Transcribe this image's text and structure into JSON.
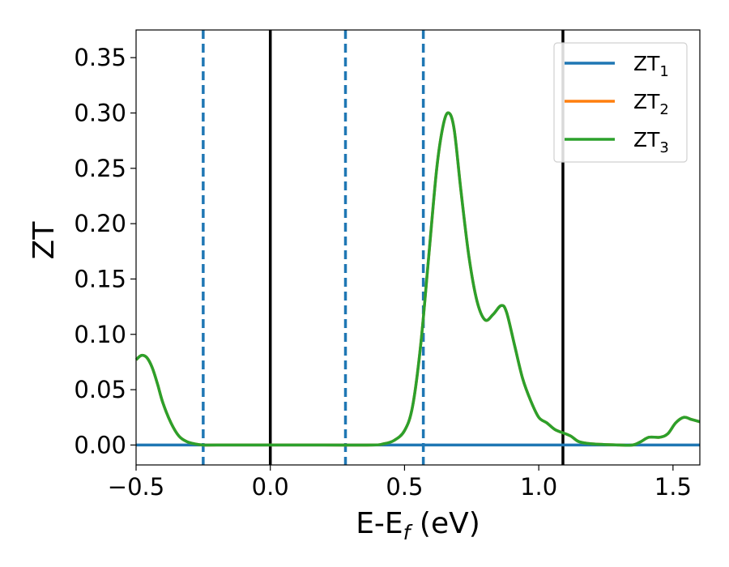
{
  "chart_data": {
    "type": "line",
    "xlabel": "E-E",
    "xlabel_sub": "f",
    "xlabel_unit": " (eV)",
    "ylabel": "ZT",
    "xlim": [
      -0.5,
      1.6
    ],
    "ylim": [
      -0.018,
      0.375
    ],
    "xticks": [
      -0.5,
      0.0,
      0.5,
      1.0,
      1.5
    ],
    "xtick_labels": [
      "−0.5",
      "0.0",
      "0.5",
      "1.0",
      "1.5"
    ],
    "yticks": [
      0.0,
      0.05,
      0.1,
      0.15,
      0.2,
      0.25,
      0.3,
      0.35
    ],
    "ytick_labels": [
      "0.00",
      "0.05",
      "0.10",
      "0.15",
      "0.20",
      "0.25",
      "0.30",
      "0.35"
    ],
    "grid": false,
    "legend_position": "top-right",
    "series": [
      {
        "name": "ZT",
        "name_sub": "1",
        "color": "#1f77b4",
        "x": [
          -0.5,
          1.6
        ],
        "y": [
          0.0,
          0.0
        ]
      },
      {
        "name": "ZT",
        "name_sub": "2",
        "color": "#ff7f0e",
        "x": [
          -0.5,
          -0.48,
          -0.46,
          -0.44,
          -0.42,
          -0.4,
          -0.37,
          -0.34,
          -0.31,
          -0.28,
          -0.25,
          -0.2,
          0.0,
          0.2,
          0.38,
          0.42,
          0.46,
          0.5,
          0.53,
          0.56,
          0.59,
          0.62,
          0.645,
          0.665,
          0.685,
          0.71,
          0.74,
          0.77,
          0.8,
          0.83,
          0.86,
          0.88,
          0.91,
          0.94,
          0.97,
          1.0,
          1.03,
          1.06,
          1.09,
          1.12,
          1.15,
          1.2,
          1.3,
          1.35,
          1.38,
          1.41,
          1.45,
          1.48,
          1.51,
          1.54,
          1.57,
          1.6
        ],
        "y": [
          0.077,
          0.081,
          0.079,
          0.07,
          0.055,
          0.038,
          0.02,
          0.008,
          0.003,
          0.001,
          0.0,
          0.0,
          0.0,
          0.0,
          0.0,
          0.001,
          0.004,
          0.013,
          0.035,
          0.09,
          0.17,
          0.25,
          0.29,
          0.3,
          0.285,
          0.23,
          0.17,
          0.13,
          0.113,
          0.118,
          0.126,
          0.12,
          0.09,
          0.06,
          0.04,
          0.025,
          0.02,
          0.014,
          0.011,
          0.008,
          0.003,
          0.001,
          0.0,
          0.0,
          0.003,
          0.007,
          0.007,
          0.01,
          0.02,
          0.025,
          0.023,
          0.021
        ]
      },
      {
        "name": "ZT",
        "name_sub": "3",
        "color": "#2ca02c",
        "x": [
          -0.5,
          -0.48,
          -0.46,
          -0.44,
          -0.42,
          -0.4,
          -0.37,
          -0.34,
          -0.31,
          -0.28,
          -0.25,
          -0.2,
          0.0,
          0.2,
          0.38,
          0.42,
          0.46,
          0.5,
          0.53,
          0.56,
          0.59,
          0.62,
          0.645,
          0.665,
          0.685,
          0.71,
          0.74,
          0.77,
          0.8,
          0.83,
          0.86,
          0.88,
          0.91,
          0.94,
          0.97,
          1.0,
          1.03,
          1.06,
          1.09,
          1.12,
          1.15,
          1.2,
          1.3,
          1.35,
          1.38,
          1.41,
          1.45,
          1.48,
          1.51,
          1.54,
          1.57,
          1.6
        ],
        "y": [
          0.077,
          0.081,
          0.079,
          0.07,
          0.055,
          0.038,
          0.02,
          0.008,
          0.003,
          0.001,
          0.0,
          0.0,
          0.0,
          0.0,
          0.0,
          0.001,
          0.004,
          0.013,
          0.035,
          0.09,
          0.17,
          0.25,
          0.29,
          0.3,
          0.285,
          0.23,
          0.17,
          0.13,
          0.113,
          0.118,
          0.126,
          0.12,
          0.09,
          0.06,
          0.04,
          0.025,
          0.02,
          0.014,
          0.011,
          0.008,
          0.003,
          0.001,
          0.0,
          0.0,
          0.003,
          0.007,
          0.007,
          0.01,
          0.02,
          0.025,
          0.023,
          0.021
        ]
      }
    ],
    "vlines": [
      {
        "x": -0.25,
        "style": "dashed",
        "color": "#1f77b4"
      },
      {
        "x": 0.0,
        "style": "solid",
        "color": "#000000"
      },
      {
        "x": 0.28,
        "style": "dashed",
        "color": "#1f77b4"
      },
      {
        "x": 0.57,
        "style": "dashed",
        "color": "#1f77b4"
      },
      {
        "x": 1.09,
        "style": "solid",
        "color": "#000000"
      }
    ]
  }
}
